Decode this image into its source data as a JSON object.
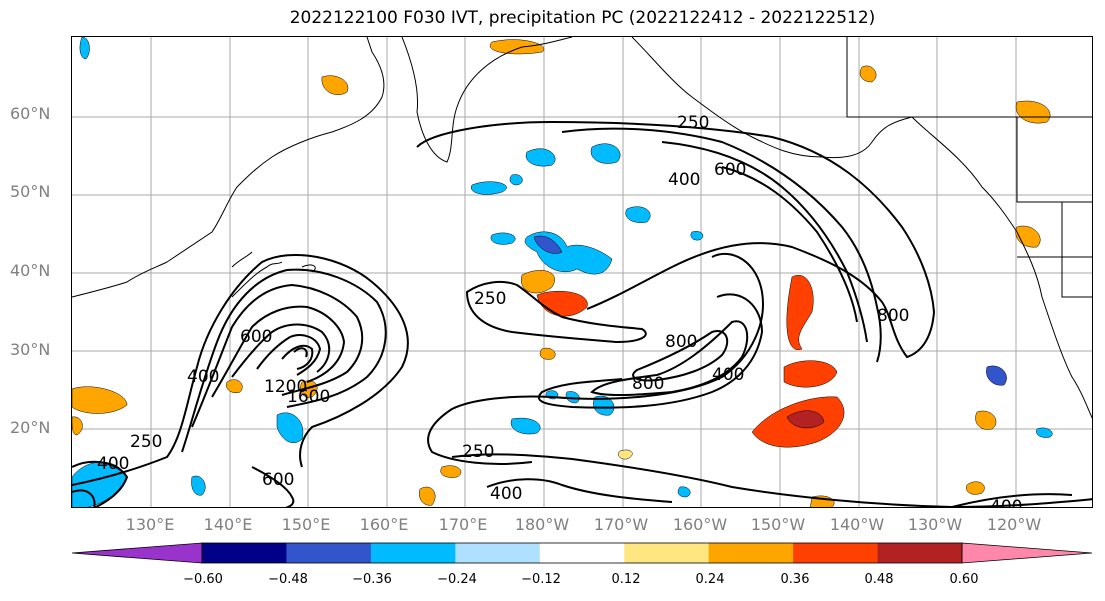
{
  "title": "2022122100 F030 IVT, precipitation PC (2022122412 - 2022122512)",
  "latitude_labels": [
    "60°N",
    "50°N",
    "40°N",
    "30°N",
    "20°N"
  ],
  "longitude_labels": [
    "130°E",
    "140°E",
    "150°E",
    "160°E",
    "170°E",
    "180°W",
    "170°W",
    "160°W",
    "150°W",
    "140°W",
    "130°W",
    "120°W"
  ],
  "ivt_contour_labels": [
    "250",
    "400",
    "600",
    "800",
    "1200",
    "1600",
    "250",
    "400",
    "600",
    "250",
    "400",
    "600",
    "800",
    "800",
    "400",
    "250",
    "400",
    "400"
  ],
  "colorbar": {
    "tick_labels": [
      "−0.60",
      "−0.48",
      "−0.36",
      "−0.24",
      "−0.12",
      "0.12",
      "0.24",
      "0.36",
      "0.48",
      "0.60"
    ],
    "colors": [
      "#9933cc",
      "#000088",
      "#3355cc",
      "#00bbff",
      "#b0e0ff",
      "#ffffff",
      "#ffe680",
      "#ffa500",
      "#ff4000",
      "#b22222",
      "#ff88aa"
    ],
    "extend": "both"
  }
}
